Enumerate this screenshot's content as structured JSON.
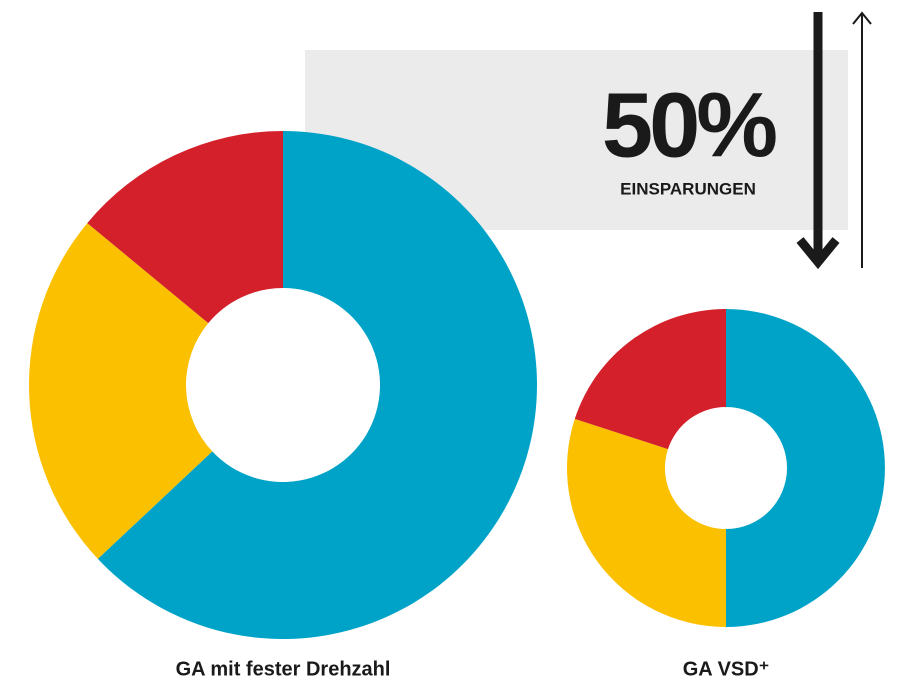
{
  "chart_data": [
    {
      "type": "pie",
      "title": "GA mit fester Drehzahl",
      "categories": [
        null,
        null,
        null
      ],
      "values": [
        63,
        23,
        14
      ],
      "colors": [
        "#00a3c8",
        "#fbc000",
        "#d4202a"
      ]
    },
    {
      "type": "pie",
      "title": "GA VSD⁺",
      "categories": [
        null,
        null,
        null
      ],
      "values": [
        50,
        30,
        20
      ],
      "colors": [
        "#00a3c8",
        "#fbc000",
        "#d4202a"
      ],
      "annotations": [
        "50%",
        "EINSPARUNGEN"
      ]
    }
  ]
}
